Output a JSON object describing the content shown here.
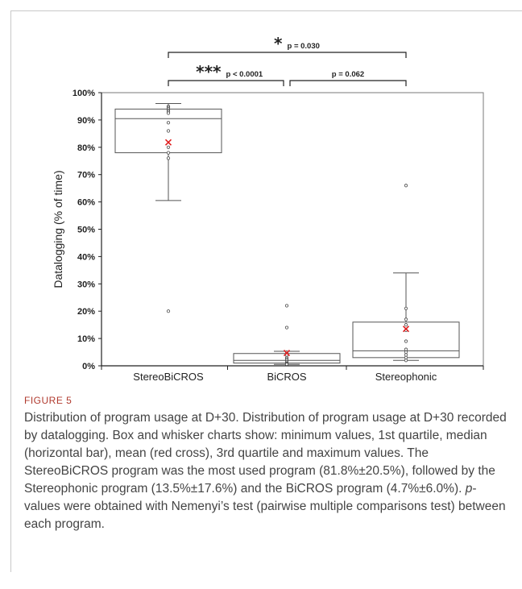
{
  "chart_data": {
    "type": "box",
    "ylabel": "Datalogging (% of time)",
    "ylim": [
      0,
      100
    ],
    "yticks": [
      "0%",
      "10%",
      "20%",
      "30%",
      "40%",
      "50%",
      "60%",
      "70%",
      "80%",
      "90%",
      "100%"
    ],
    "categories": [
      "StereoBiCROS",
      "BiCROS",
      "Stereophonic"
    ],
    "boxes": [
      {
        "category": "StereoBiCROS",
        "min": 60.5,
        "q1": 78,
        "median": 90.5,
        "q3": 94,
        "max": 96,
        "mean": 81.8,
        "points": [
          95,
          94.5,
          94,
          93.5,
          93,
          92.5,
          89,
          86,
          80,
          78,
          76,
          20
        ]
      },
      {
        "category": "BiCROS",
        "min": 0.5,
        "q1": 1,
        "median": 2,
        "q3": 4.5,
        "max": 5.3,
        "mean": 4.7,
        "points": [
          22,
          14,
          5,
          4,
          3,
          2.5,
          2,
          1.5,
          1,
          0.8,
          0.5
        ]
      },
      {
        "category": "Stereophonic",
        "min": 2,
        "q1": 3,
        "median": 5.5,
        "q3": 16,
        "max": 34,
        "mean": 13.5,
        "points": [
          66,
          21,
          17,
          15,
          13,
          9,
          6,
          5,
          4,
          3,
          2
        ]
      }
    ],
    "comparisons": [
      {
        "from": "StereoBiCROS",
        "to": "Stereophonic",
        "stars": "*",
        "label": "p = 0.030"
      },
      {
        "from": "StereoBiCROS",
        "to": "BiCROS",
        "stars": "***",
        "label": "p < 0.0001"
      },
      {
        "from": "BiCROS",
        "to": "Stereophonic",
        "stars": "",
        "label": "p = 0.062"
      }
    ],
    "colors": {
      "mean_marker": "#e02020",
      "box": "#555555",
      "axis": "#222222"
    }
  },
  "caption": {
    "label": "FIGURE 5",
    "text_before": "Distribution of program usage at D+30. Distribution of program usage at D+30 recorded by datalogging. Box and whisker charts show: minimum values, 1st quartile, median (horizontal bar), mean (red cross), 3rd quartile and maximum values. The StereoBiCROS program was the most used program (81.8%±20.5%), followed by the Stereophonic program (13.5%±17.6%) and the BiCROS program (4.7%±6.0%). ",
    "text_italic": "p",
    "text_after": "-values were obtained with Nemenyi’s test (pairwise multiple comparisons test) between each program."
  }
}
